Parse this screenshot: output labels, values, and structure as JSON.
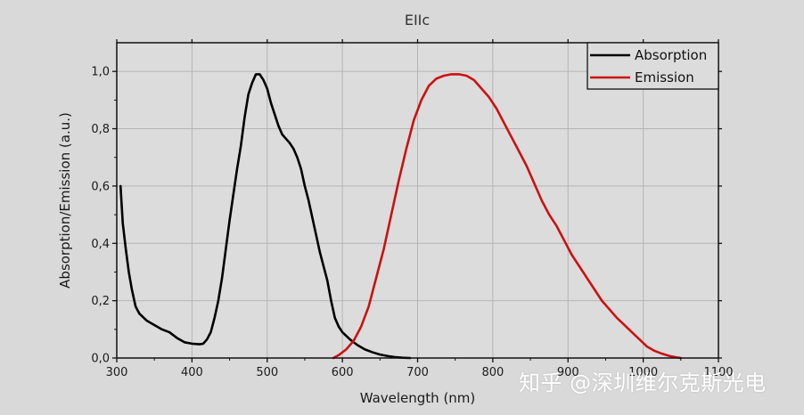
{
  "chart_data": {
    "type": "line",
    "title": "EIIc",
    "xlabel": "Wavelength (nm)",
    "ylabel": "Absorption/Emission (a.u.)",
    "xlim": [
      300,
      1100
    ],
    "ylim": [
      0,
      1.1
    ],
    "x_ticks": [
      300,
      400,
      500,
      600,
      700,
      800,
      900,
      1000,
      1100
    ],
    "x_tick_labels": [
      "300",
      "400",
      "500",
      "600",
      "700",
      "800",
      "900",
      "1000",
      "1100"
    ],
    "y_ticks": [
      0,
      0.2,
      0.4,
      0.6,
      0.8,
      1.0
    ],
    "y_tick_labels": [
      "0,0",
      "0,2",
      "0,4",
      "0,6",
      "0,8",
      "1,0"
    ],
    "grid": true,
    "legend_position": "top-right",
    "series": [
      {
        "name": "Absorption",
        "color": "#000000",
        "points": [
          [
            305,
            0.6
          ],
          [
            308,
            0.47
          ],
          [
            312,
            0.38
          ],
          [
            316,
            0.3
          ],
          [
            320,
            0.24
          ],
          [
            325,
            0.18
          ],
          [
            330,
            0.155
          ],
          [
            340,
            0.13
          ],
          [
            350,
            0.115
          ],
          [
            360,
            0.1
          ],
          [
            370,
            0.09
          ],
          [
            380,
            0.07
          ],
          [
            390,
            0.055
          ],
          [
            400,
            0.05
          ],
          [
            410,
            0.048
          ],
          [
            415,
            0.05
          ],
          [
            420,
            0.065
          ],
          [
            425,
            0.09
          ],
          [
            430,
            0.14
          ],
          [
            435,
            0.2
          ],
          [
            440,
            0.28
          ],
          [
            445,
            0.38
          ],
          [
            450,
            0.48
          ],
          [
            455,
            0.57
          ],
          [
            460,
            0.66
          ],
          [
            465,
            0.74
          ],
          [
            470,
            0.84
          ],
          [
            475,
            0.92
          ],
          [
            480,
            0.96
          ],
          [
            485,
            0.99
          ],
          [
            490,
            0.99
          ],
          [
            495,
            0.97
          ],
          [
            500,
            0.94
          ],
          [
            505,
            0.89
          ],
          [
            510,
            0.85
          ],
          [
            515,
            0.81
          ],
          [
            520,
            0.78
          ],
          [
            525,
            0.765
          ],
          [
            530,
            0.75
          ],
          [
            535,
            0.73
          ],
          [
            540,
            0.7
          ],
          [
            545,
            0.66
          ],
          [
            550,
            0.6
          ],
          [
            555,
            0.55
          ],
          [
            560,
            0.49
          ],
          [
            565,
            0.43
          ],
          [
            570,
            0.37
          ],
          [
            575,
            0.32
          ],
          [
            580,
            0.27
          ],
          [
            585,
            0.2
          ],
          [
            590,
            0.14
          ],
          [
            595,
            0.11
          ],
          [
            600,
            0.09
          ],
          [
            610,
            0.065
          ],
          [
            620,
            0.045
          ],
          [
            630,
            0.03
          ],
          [
            640,
            0.02
          ],
          [
            650,
            0.012
          ],
          [
            660,
            0.007
          ],
          [
            670,
            0.003
          ],
          [
            680,
            0.001
          ],
          [
            690,
            0.0
          ]
        ]
      },
      {
        "name": "Emission",
        "color": "#cc1111",
        "points": [
          [
            588,
            0.0
          ],
          [
            595,
            0.01
          ],
          [
            605,
            0.03
          ],
          [
            615,
            0.06
          ],
          [
            625,
            0.11
          ],
          [
            635,
            0.18
          ],
          [
            645,
            0.28
          ],
          [
            655,
            0.38
          ],
          [
            665,
            0.5
          ],
          [
            675,
            0.62
          ],
          [
            685,
            0.73
          ],
          [
            695,
            0.83
          ],
          [
            705,
            0.9
          ],
          [
            715,
            0.95
          ],
          [
            725,
            0.975
          ],
          [
            735,
            0.985
          ],
          [
            745,
            0.99
          ],
          [
            755,
            0.99
          ],
          [
            765,
            0.985
          ],
          [
            775,
            0.97
          ],
          [
            785,
            0.94
          ],
          [
            795,
            0.91
          ],
          [
            805,
            0.87
          ],
          [
            815,
            0.82
          ],
          [
            825,
            0.77
          ],
          [
            835,
            0.72
          ],
          [
            845,
            0.67
          ],
          [
            855,
            0.61
          ],
          [
            865,
            0.55
          ],
          [
            875,
            0.5
          ],
          [
            885,
            0.46
          ],
          [
            895,
            0.41
          ],
          [
            905,
            0.36
          ],
          [
            915,
            0.32
          ],
          [
            925,
            0.28
          ],
          [
            935,
            0.24
          ],
          [
            945,
            0.2
          ],
          [
            955,
            0.17
          ],
          [
            965,
            0.14
          ],
          [
            975,
            0.115
          ],
          [
            985,
            0.09
          ],
          [
            995,
            0.065
          ],
          [
            1005,
            0.04
          ],
          [
            1015,
            0.025
          ],
          [
            1025,
            0.015
          ],
          [
            1035,
            0.007
          ],
          [
            1045,
            0.002
          ],
          [
            1050,
            0.0
          ]
        ]
      }
    ]
  },
  "watermark": {
    "text": "知乎 @深圳维尔克斯光电"
  }
}
